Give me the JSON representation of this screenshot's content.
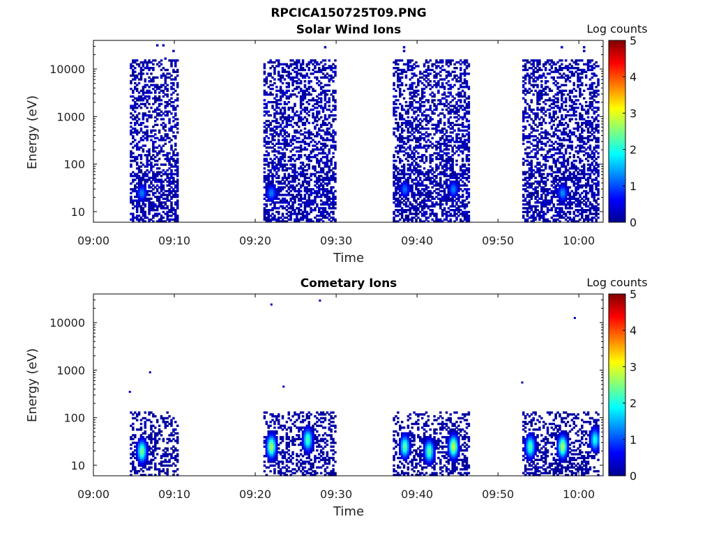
{
  "figure_title": "RPCICA150725T09.PNG",
  "chart_data": [
    {
      "type": "heatmap",
      "title": "Solar Wind Ions",
      "xlabel": "Time",
      "ylabel": "Energy (eV)",
      "yscale": "log",
      "ylim": [
        6,
        40000
      ],
      "xlim": [
        "09:00",
        "10:03"
      ],
      "x_ticks": [
        "09:00",
        "09:10",
        "09:20",
        "09:30",
        "09:40",
        "09:50",
        "10:00"
      ],
      "y_ticks": [
        "10",
        "100",
        "1000",
        "10000"
      ],
      "colorbar": {
        "label": "Log counts",
        "min": 0,
        "max": 5,
        "ticks": [
          "0",
          "1",
          "2",
          "3",
          "4",
          "5"
        ]
      },
      "scan_windows": [
        {
          "start": "09:04.5",
          "end": "09:10.5"
        },
        {
          "start": "09:21.0",
          "end": "09:30.0"
        },
        {
          "start": "09:37.0",
          "end": "09:46.5"
        },
        {
          "start": "09:53.0",
          "end": "10:02.3"
        }
      ],
      "count_distribution": "mostly log counts 0-0.5 from 6 eV to ~15000 eV inside each scan window; stronger returns near the lower energies",
      "peaks": [
        {
          "time": "09:06",
          "energy_ev": 25,
          "log_counts": 1.3
        },
        {
          "time": "09:22",
          "energy_ev": 25,
          "log_counts": 1.3
        },
        {
          "time": "09:38.5",
          "energy_ev": 30,
          "log_counts": 1.2
        },
        {
          "time": "09:44.5",
          "energy_ev": 30,
          "log_counts": 1.3
        },
        {
          "time": "09:58",
          "energy_ev": 25,
          "log_counts": 1.4
        }
      ]
    },
    {
      "type": "heatmap",
      "title": "Cometary Ions",
      "xlabel": "Time",
      "ylabel": "Energy (eV)",
      "yscale": "log",
      "ylim": [
        6,
        40000
      ],
      "xlim": [
        "09:00",
        "10:03"
      ],
      "x_ticks": [
        "09:00",
        "09:10",
        "09:20",
        "09:30",
        "09:40",
        "09:50",
        "10:00"
      ],
      "y_ticks": [
        "10",
        "100",
        "1000",
        "10000"
      ],
      "colorbar": {
        "label": "Log counts",
        "min": 0,
        "max": 5,
        "ticks": [
          "0",
          "1",
          "2",
          "3",
          "4",
          "5"
        ]
      },
      "scan_windows": [
        {
          "start": "09:04.5",
          "end": "09:10.5"
        },
        {
          "start": "09:21.0",
          "end": "09:30.0"
        },
        {
          "start": "09:37.0",
          "end": "09:46.5"
        },
        {
          "start": "09:53.0",
          "end": "10:02.3"
        }
      ],
      "count_distribution": "counts confined mainly below ~150 eV; sparse isolated points at higher energy",
      "peaks": [
        {
          "time": "09:06",
          "energy_ev": 20,
          "log_counts": 2.5
        },
        {
          "time": "09:22",
          "energy_ev": 25,
          "log_counts": 2.8
        },
        {
          "time": "09:26.5",
          "energy_ev": 35,
          "log_counts": 2.3
        },
        {
          "time": "09:38.5",
          "energy_ev": 25,
          "log_counts": 2.4
        },
        {
          "time": "09:41.5",
          "energy_ev": 20,
          "log_counts": 2.4
        },
        {
          "time": "09:44.5",
          "energy_ev": 25,
          "log_counts": 2.9
        },
        {
          "time": "09:54",
          "energy_ev": 25,
          "log_counts": 2.3
        },
        {
          "time": "09:58",
          "energy_ev": 25,
          "log_counts": 2.8
        },
        {
          "time": "10:02",
          "energy_ev": 35,
          "log_counts": 2.0
        }
      ],
      "isolated_points": [
        {
          "time": "09:04.5",
          "energy_ev": 350
        },
        {
          "time": "09:07",
          "energy_ev": 900
        },
        {
          "time": "09:22",
          "energy_ev": 24000
        },
        {
          "time": "09:23.5",
          "energy_ev": 450
        },
        {
          "time": "09:28",
          "energy_ev": 29000
        },
        {
          "time": "09:53",
          "energy_ev": 550
        },
        {
          "time": "09:59.5",
          "energy_ev": 12500
        }
      ]
    }
  ]
}
